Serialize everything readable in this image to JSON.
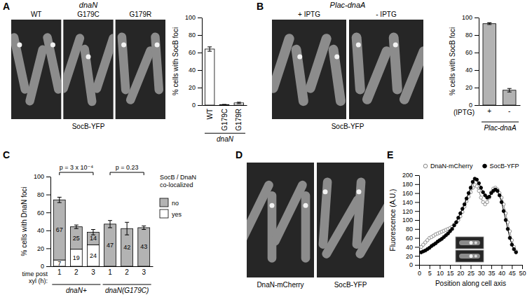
{
  "figure": {
    "panels": [
      {
        "letter": "A",
        "header": "dnaN",
        "image_labels": [
          "WT",
          "G179C",
          "G179R"
        ],
        "caption": "SocB-YFP"
      },
      {
        "letter": "B",
        "header": "Plac-dnaA",
        "image_labels": [
          "+ IPTG",
          "- IPTG"
        ],
        "caption": "SocB-YFP"
      },
      {
        "letter": "C"
      },
      {
        "letter": "D",
        "image_labels": [
          "DnaN-mCherry",
          "SocB-YFP"
        ]
      },
      {
        "letter": "E"
      }
    ]
  },
  "chart_data": [
    {
      "type": "bar",
      "categories": [
        "WT",
        "G179C",
        "G179R"
      ],
      "values": [
        64,
        0.5,
        2.5
      ],
      "errors": [
        2.5,
        0.3,
        0.8
      ],
      "color": "#ffffff",
      "ylabel": "% cells with SocB foci",
      "group_label": "dnaN",
      "ylim": [
        0,
        100
      ],
      "yticks": [
        0,
        20,
        40,
        60,
        80,
        100
      ]
    },
    {
      "type": "bar",
      "categories": [
        "+",
        "-"
      ],
      "values": [
        93,
        17
      ],
      "errors": [
        1,
        2
      ],
      "color": "#b3b3b3",
      "xlabel": "(IPTG)",
      "ylabel": "% cells with SocB foci",
      "group_label": "Plac-dnaA",
      "ylim": [
        0,
        100
      ],
      "yticks": [
        0,
        20,
        40,
        60,
        80,
        100
      ]
    },
    {
      "type": "bar",
      "stacked": true,
      "data_labels": true,
      "categories": [
        "1",
        "2",
        "3",
        "1",
        "2",
        "3"
      ],
      "groups": [
        "dnaN+",
        "dnaN(G179C)"
      ],
      "series": [
        {
          "name": "yes",
          "color": "#ffffff",
          "values": [
            7,
            19,
            24,
            null,
            null,
            null
          ]
        },
        {
          "name": "no",
          "color": "#b3b3b3",
          "values": [
            67,
            25,
            14,
            47,
            42,
            43
          ],
          "errors": [
            3,
            2,
            3,
            4,
            7,
            2
          ]
        }
      ],
      "xlabel": "time post xyl (h):",
      "ylabel": "% cells with DnaN foci",
      "legend_title": "SocB / DnaN co-localized",
      "legend": "right",
      "annotations": [
        {
          "text": "p = 3 x 10⁻⁴",
          "group": "dnaN+"
        },
        {
          "text": "p = 0.23",
          "group": "dnaN(G179C)"
        }
      ],
      "ylim": [
        0,
        100
      ],
      "yticks": [
        0,
        20,
        40,
        60,
        80,
        100
      ]
    },
    {
      "type": "line",
      "x": [
        1,
        2,
        3,
        4,
        5,
        6,
        7,
        8,
        9,
        10,
        11,
        12,
        13,
        14,
        15,
        16,
        17,
        18,
        19,
        20,
        21,
        22,
        23,
        24,
        25,
        26,
        27,
        28,
        29,
        30,
        31,
        32,
        33,
        34,
        35,
        36,
        37,
        38,
        39,
        40,
        41,
        42,
        43,
        44,
        45,
        46,
        47
      ],
      "series": [
        {
          "name": "DnaN-mCherry",
          "color": "#888888",
          "marker": "circle-open",
          "line_style": "solid",
          "values": [
            40,
            45,
            50,
            55,
            60,
            62,
            65,
            68,
            70,
            72,
            74,
            76,
            78,
            80,
            82,
            85,
            90,
            95,
            100,
            108,
            118,
            130,
            142,
            152,
            162,
            172,
            178,
            175,
            165,
            150,
            140,
            135,
            140,
            150,
            162,
            170,
            172,
            168,
            160,
            150,
            135,
            115,
            95,
            75,
            55,
            40,
            30
          ]
        },
        {
          "name": "SocB-YFP",
          "color": "#000000",
          "marker": "circle",
          "line_style": "solid",
          "values": [
            28,
            30,
            32,
            35,
            38,
            42,
            45,
            48,
            52,
            55,
            58,
            62,
            66,
            70,
            75,
            80,
            88,
            95,
            105,
            115,
            125,
            135,
            148,
            160,
            172,
            185,
            192,
            190,
            182,
            172,
            162,
            155,
            150,
            152,
            160,
            165,
            168,
            165,
            155,
            140,
            120,
            100,
            80,
            60,
            45,
            35,
            28
          ]
        }
      ],
      "xlabel": "Position along cell axis",
      "ylabel": "Fluorescence (A.U.)",
      "xlim": [
        0,
        50
      ],
      "xticks": [
        0,
        5,
        10,
        15,
        20,
        25,
        30,
        35,
        40,
        45,
        50
      ],
      "ylim": [
        0,
        200
      ],
      "yticks": [
        0,
        20,
        40,
        60,
        80,
        100,
        120,
        140,
        160,
        180,
        200
      ],
      "legend": "top"
    }
  ]
}
